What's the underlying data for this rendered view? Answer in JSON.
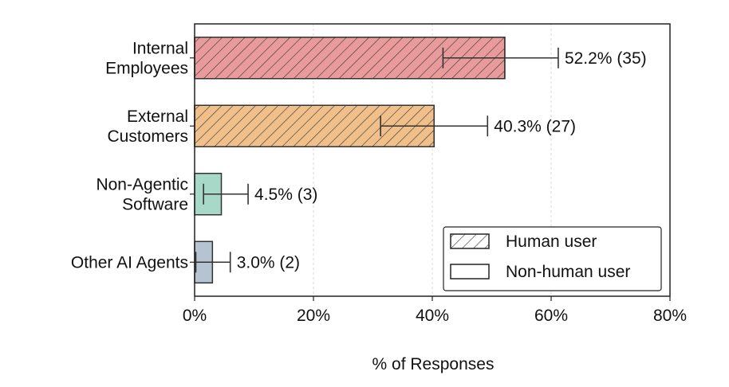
{
  "chart_data": {
    "type": "bar",
    "orientation": "horizontal",
    "categories": [
      {
        "lines": [
          "Internal",
          "Employees"
        ]
      },
      {
        "lines": [
          "External",
          "Customers"
        ]
      },
      {
        "lines": [
          "Non-Agentic",
          "Software"
        ]
      },
      {
        "lines": [
          "Other AI Agents"
        ]
      }
    ],
    "values": [
      52.2,
      40.3,
      4.5,
      3.0
    ],
    "counts": [
      35,
      27,
      3,
      2
    ],
    "error_low": [
      41.8,
      31.3,
      1.5,
      0.2
    ],
    "error_high": [
      61.2,
      49.3,
      9.0,
      6.0
    ],
    "labels": [
      "52.2% (35)",
      "40.3% (27)",
      "4.5% (3)",
      "3.0% (2)"
    ],
    "user_type": [
      "human",
      "human",
      "non-human",
      "non-human"
    ],
    "colors": [
      "#e99b9b",
      "#f0bf8a",
      "#a8d8c8",
      "#b6c3d1"
    ],
    "xlabel": "% of Responses",
    "xlim": [
      0,
      80
    ],
    "xticks": [
      0,
      20,
      40,
      60,
      80
    ],
    "xtick_labels": [
      "0%",
      "20%",
      "40%",
      "60%",
      "80%"
    ],
    "grid": "vertical dashed",
    "legend": {
      "placement": "bottom-right",
      "entries": [
        {
          "label": "Human user",
          "pattern": "hatched"
        },
        {
          "label": "Non-human user",
          "pattern": "plain"
        }
      ]
    }
  }
}
